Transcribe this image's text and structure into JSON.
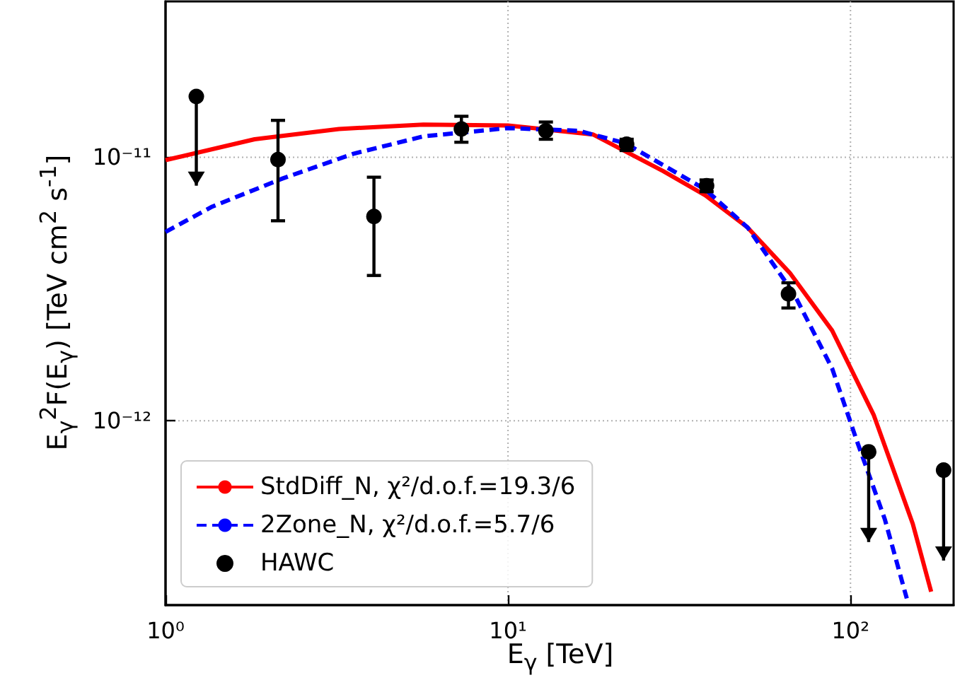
{
  "chart_data": {
    "type": "line",
    "xlabel": "E$_{γ}$ [TeV]",
    "ylabel": "E$_{γ}$$^{2}$F(E$_{γ}$) [TeV cm$^{2}$ s$^{-1}$]",
    "log": "xy",
    "grid": true,
    "legend": "bottom left",
    "xlim": [
      1,
      200
    ],
    "xticks": [
      {
        "value": 1,
        "label": "10⁰"
      },
      {
        "value": 10,
        "label": "10¹"
      },
      {
        "value": 100,
        "label": "10²"
      }
    ],
    "ylim": [
      2e-13,
      3.9e-11
    ],
    "yticks": [
      {
        "value": 1e-12,
        "label": "10⁻¹²"
      },
      {
        "value": 1e-11,
        "label": "10⁻¹¹"
      }
    ],
    "series": [
      {
        "name": "StdDiff_N, χ²/d.o.f.=19.3/6",
        "color": "#ff0000",
        "line_style": "solid",
        "marker": "none",
        "x": [
          1.0,
          1.82,
          3.21,
          5.66,
          10,
          17.7,
          28.4,
          37.7,
          50.1,
          66.5,
          88.4,
          117,
          152,
          172
        ],
        "values": [
          9.75e-12,
          1.17e-11,
          1.28e-11,
          1.33e-11,
          1.32e-11,
          1.22e-11,
          8.85e-12,
          7.17e-12,
          5.41e-12,
          3.64e-12,
          2.2e-12,
          1.05e-12,
          4.07e-13,
          2.25e-13
        ]
      },
      {
        "name": "2Zone_N, χ²/d.o.f.=5.7/6",
        "color": "#0000ff",
        "line_style": "dashed",
        "marker": "none",
        "x": [
          1.0,
          1.37,
          2.2,
          3.53,
          5.66,
          10,
          16.1,
          22.0,
          37.7,
          50.1,
          68.4,
          88.4,
          104,
          126,
          146
        ],
        "values": [
          5.21e-12,
          6.5e-12,
          8.31e-12,
          1.03e-11,
          1.2e-11,
          1.29e-11,
          1.26e-11,
          1.13e-11,
          7.54e-12,
          5.41e-12,
          3.03e-12,
          1.58e-12,
          8.51e-13,
          4.23e-13,
          2.12e-13
        ]
      },
      {
        "name": "HAWC",
        "type": "scatter",
        "color": "#000000",
        "marker": "circle",
        "x": [
          1.23,
          2.13,
          4.06,
          7.31,
          12.9,
          22.2,
          38.0,
          65.9,
          113,
          187
        ],
        "values": [
          1.7e-11,
          9.8e-12,
          5.96e-12,
          1.28e-11,
          1.26e-11,
          1.12e-11,
          7.8e-12,
          3.03e-12,
          7.63e-13,
          6.5e-13
        ],
        "errors": [
          [
            7.8e-12,
            1.7e-11
          ],
          [
            5.74e-12,
            1.38e-11
          ],
          [
            3.56e-12,
            8.4e-12
          ],
          [
            1.14e-11,
            1.43e-11
          ],
          [
            1.17e-11,
            1.36e-11
          ],
          [
            1.06e-11,
            1.17e-11
          ],
          [
            7.4e-12,
            8.2e-12
          ],
          [
            2.68e-12,
            3.34e-12
          ],
          [
            3.47e-13,
            7.63e-13
          ],
          [
            2.95e-13,
            6.5e-13
          ]
        ]
      }
    ]
  }
}
